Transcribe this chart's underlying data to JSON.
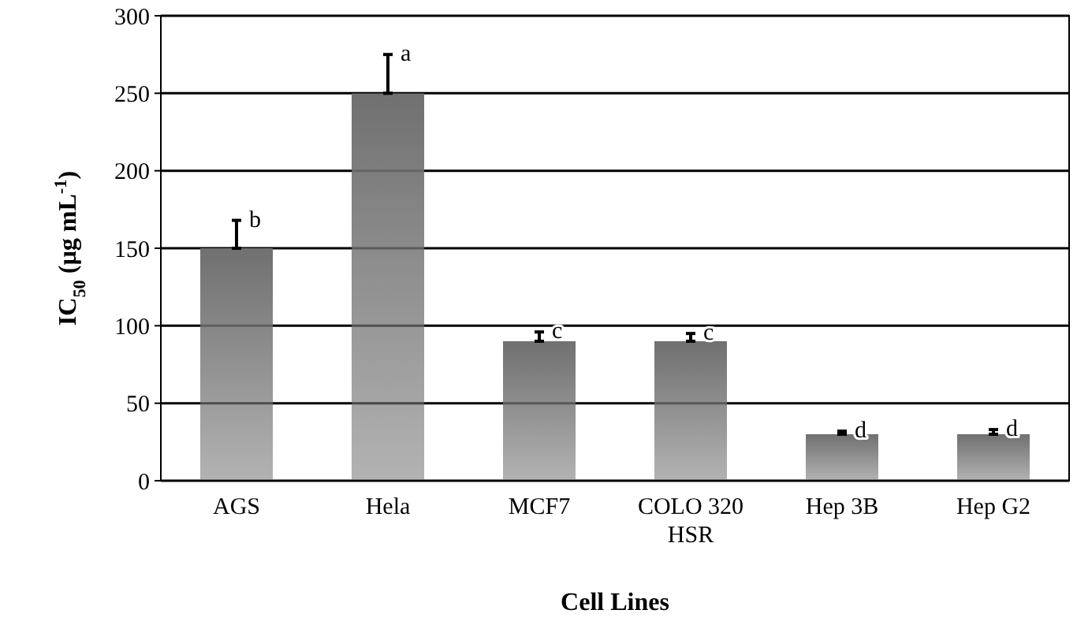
{
  "chart_data": {
    "type": "bar",
    "xlabel": "Cell Lines",
    "ylabel": "IC$_{50}$ (µg mL$^{-1}$)",
    "categories": [
      "AGS",
      "Hela",
      "MCF7",
      "COLO 320 HSR",
      "Hep 3B",
      "Hep G2"
    ],
    "values": [
      150,
      250,
      90,
      90,
      30,
      30
    ],
    "errors": [
      [
        150,
        168
      ],
      [
        250,
        275
      ],
      [
        90,
        96
      ],
      [
        90,
        95
      ],
      [
        30,
        32
      ],
      [
        30,
        33
      ]
    ],
    "color": "#707070",
    "ylim": [
      0,
      300
    ],
    "yticks": [
      0,
      50,
      100,
      150,
      200,
      250,
      300
    ],
    "grid": "y",
    "annotations": [
      {
        "text": "b",
        "x": "AGS",
        "y": 168
      },
      {
        "text": "a",
        "x": "Hela",
        "y": 275
      },
      {
        "text": "c",
        "x": "MCF7",
        "y": 96
      },
      {
        "text": "c",
        "x": "COLO 320 HSR",
        "y": 95
      },
      {
        "text": "d",
        "x": "Hep 3B",
        "y": 32
      },
      {
        "text": "d",
        "x": "Hep G2",
        "y": 33
      }
    ]
  }
}
